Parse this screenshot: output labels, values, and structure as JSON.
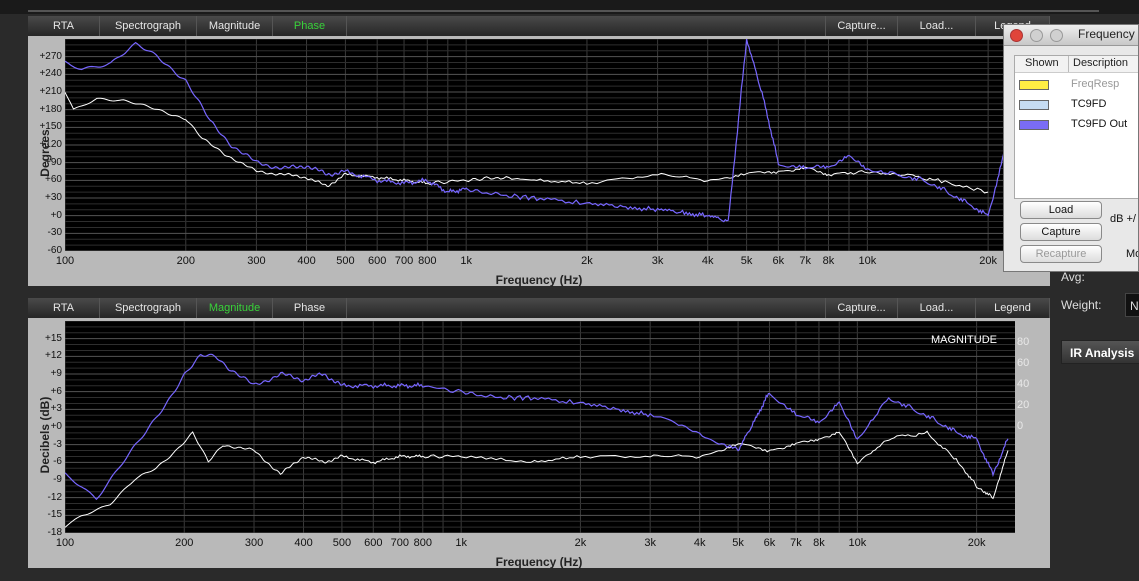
{
  "phase_panel": {
    "tabs": [
      {
        "label": "RTA",
        "active": false
      },
      {
        "label": "Spectrograph",
        "active": false
      },
      {
        "label": "Magnitude",
        "active": false
      },
      {
        "label": "Phase",
        "active": true
      }
    ],
    "right_buttons": [
      "Capture...",
      "Load...",
      "Legend"
    ],
    "ylabel": "Degrees",
    "xlabel": "Frequency (Hz)"
  },
  "magnitude_panel": {
    "tabs": [
      {
        "label": "RTA",
        "active": false
      },
      {
        "label": "Spectrograph",
        "active": false
      },
      {
        "label": "Magnitude",
        "active": true
      },
      {
        "label": "Phase",
        "active": false
      }
    ],
    "right_buttons": [
      "Capture...",
      "Load...",
      "Legend"
    ],
    "ylabel": "Decibels (dB)",
    "xlabel": "Frequency (Hz)",
    "overlay_label": "MAGNITUDE"
  },
  "chart_data": [
    {
      "type": "line",
      "ylabel": "Degrees",
      "xlabel": "Frequency (Hz)",
      "x_scale": "log",
      "xlim": [
        100,
        25000
      ],
      "ylim": [
        -60,
        300
      ],
      "yticks": [
        "+270",
        "+240",
        "+210",
        "+180",
        "+150",
        "+120",
        "+90",
        "+60",
        "+30",
        "+0",
        "-30",
        "-60"
      ],
      "xticks": [
        "100",
        "200",
        "300",
        "400",
        "500",
        "600",
        "700",
        "800",
        "1k",
        "2k",
        "3k",
        "4k",
        "5k",
        "6k",
        "7k",
        "8k",
        "10k",
        "20k"
      ],
      "grid": true,
      "series": [
        {
          "name": "TC9FD",
          "color": "#ffffff",
          "x": [
            100,
            105,
            120,
            140,
            170,
            200,
            220,
            250,
            300,
            350,
            400,
            450,
            500,
            600,
            700,
            800,
            1000,
            1200,
            1500,
            2000,
            3000,
            4000,
            5000,
            6000,
            7000,
            8000,
            10000,
            12000,
            15000,
            20000
          ],
          "y": [
            210,
            180,
            200,
            195,
            180,
            165,
            130,
            105,
            75,
            70,
            65,
            50,
            70,
            65,
            60,
            55,
            60,
            65,
            60,
            55,
            70,
            60,
            70,
            75,
            80,
            70,
            75,
            70,
            60,
            40
          ]
        },
        {
          "name": "TC9FD Out",
          "color": "#7766ff",
          "x": [
            100,
            110,
            130,
            150,
            170,
            200,
            230,
            260,
            300,
            350,
            400,
            450,
            500,
            600,
            700,
            800,
            900,
            1000,
            1200,
            1500,
            2000,
            2500,
            3000,
            3500,
            4000,
            4500,
            5000,
            5500,
            6000,
            7000,
            8000,
            9000,
            10000,
            12000,
            14000,
            16000,
            18000,
            20000,
            22000
          ],
          "y": [
            260,
            250,
            260,
            290,
            270,
            230,
            160,
            120,
            90,
            80,
            85,
            70,
            75,
            60,
            55,
            60,
            40,
            45,
            35,
            30,
            20,
            15,
            10,
            5,
            0,
            -10,
            300,
            200,
            90,
            80,
            85,
            100,
            80,
            70,
            60,
            40,
            20,
            0,
            110
          ]
        }
      ]
    },
    {
      "type": "line",
      "ylabel": "Decibels (dB)",
      "xlabel": "Frequency (Hz)",
      "x_scale": "log",
      "xlim": [
        100,
        25000
      ],
      "ylim": [
        -18,
        18
      ],
      "yticks": [
        "+15",
        "+12",
        "+9",
        "+6",
        "+3",
        "+0",
        "-3",
        "-6",
        "-9",
        "-12",
        "-15",
        "-18"
      ],
      "right_yticks": [
        "80",
        "60",
        "40",
        "20",
        "0"
      ],
      "xticks": [
        "100",
        "200",
        "300",
        "400",
        "500",
        "600",
        "700",
        "800",
        "1k",
        "2k",
        "3k",
        "4k",
        "5k",
        "6k",
        "7k",
        "8k",
        "10k",
        "20k"
      ],
      "grid": true,
      "series": [
        {
          "name": "TC9FD",
          "color": "#ffffff",
          "x": [
            100,
            110,
            130,
            150,
            170,
            190,
            210,
            230,
            250,
            300,
            350,
            400,
            450,
            500,
            600,
            700,
            800,
            1000,
            1500,
            2000,
            3000,
            4000,
            5000,
            6000,
            7000,
            8000,
            9000,
            10000,
            12000,
            15000,
            18000,
            20000,
            22000,
            24000
          ],
          "y": [
            -17,
            -15,
            -13,
            -9,
            -7,
            -4,
            -1,
            -6,
            -3,
            -4,
            -8,
            -5,
            -6,
            -5,
            -6,
            -5,
            -5,
            -5,
            -6,
            -5,
            -5,
            -5,
            -3,
            -4,
            -3,
            -2,
            -1,
            -6,
            -2,
            -1,
            -6,
            -10,
            -12,
            -4
          ]
        },
        {
          "name": "TC9FD Out",
          "color": "#7766ff",
          "x": [
            100,
            110,
            120,
            140,
            160,
            180,
            200,
            220,
            240,
            260,
            300,
            350,
            400,
            450,
            500,
            600,
            700,
            800,
            1000,
            1200,
            1500,
            2000,
            2500,
            3000,
            4000,
            5000,
            5500,
            6000,
            7000,
            8000,
            9000,
            10000,
            12000,
            14000,
            16000,
            18000,
            20000,
            22000,
            24000
          ],
          "y": [
            -8,
            -10,
            -12,
            -6,
            -1,
            4,
            9,
            12,
            12,
            10,
            7,
            9,
            8,
            9,
            7,
            7,
            7,
            7,
            6,
            5,
            5,
            4,
            3,
            2,
            -1,
            -4,
            1,
            6,
            2,
            1,
            4,
            -2,
            5,
            3,
            1,
            -1,
            -2,
            -8,
            -2
          ]
        }
      ]
    }
  ],
  "freq_window": {
    "title": "Frequency",
    "headers": [
      "Shown",
      "Description"
    ],
    "items": [
      {
        "label": "FreqResp",
        "color": "#ffee44",
        "dimmed": true
      },
      {
        "label": "TC9FD",
        "color": "#c6dcf2",
        "dimmed": false
      },
      {
        "label": "TC9FD Out",
        "color": "#7a6cf5",
        "dimmed": false
      }
    ],
    "buttons": {
      "load": "Load",
      "capture": "Capture",
      "recapture": "Recapture"
    },
    "db_label": "dB +/",
    "mo_label": "Mo"
  },
  "side": {
    "avg_label": "Avg:",
    "weight_label": "Weight:",
    "weight_value": "N",
    "ir_button": "IR Analysis"
  }
}
